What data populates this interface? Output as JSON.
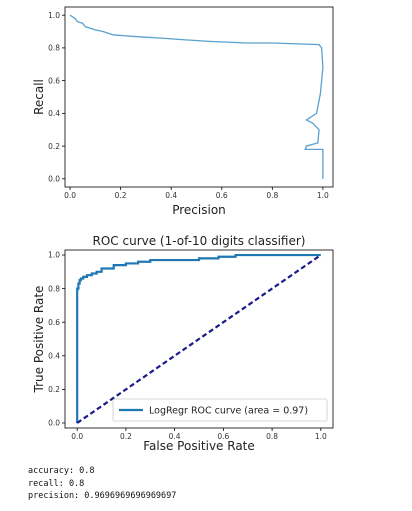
{
  "chart_data": [
    {
      "type": "line",
      "title": "",
      "xlabel": "Precision",
      "ylabel": "Recall",
      "xlim": [
        -0.02,
        1.04
      ],
      "ylim": [
        -0.05,
        1.05
      ],
      "xticks": [
        "0.0",
        "0.2",
        "0.4",
        "0.6",
        "0.8",
        "1.0"
      ],
      "yticks": [
        "0.0",
        "0.2",
        "0.4",
        "0.6",
        "0.8",
        "1.0"
      ],
      "color": "#5aa0d0",
      "series": [
        {
          "x": [
            0.0,
            0.02,
            0.03,
            0.05,
            0.06,
            0.08,
            0.1,
            0.13,
            0.17,
            0.25,
            0.36,
            0.45,
            0.55,
            0.7,
            0.8,
            0.985,
            0.995,
            1.0,
            0.99,
            0.975,
            0.935,
            0.96,
            0.985,
            0.98,
            0.935,
            0.93,
            1.0,
            1.0
          ],
          "y": [
            1.0,
            0.98,
            0.96,
            0.95,
            0.93,
            0.92,
            0.91,
            0.9,
            0.88,
            0.87,
            0.86,
            0.85,
            0.84,
            0.83,
            0.83,
            0.82,
            0.8,
            0.68,
            0.52,
            0.4,
            0.36,
            0.34,
            0.3,
            0.22,
            0.2,
            0.18,
            0.18,
            0.0
          ]
        }
      ]
    },
    {
      "type": "line",
      "title": "ROC curve (1-of-10 digits classifier)",
      "xlabel": "False Positive Rate",
      "ylabel": "True Positive Rate",
      "xlim": [
        -0.05,
        1.05
      ],
      "ylim": [
        -0.03,
        1.03
      ],
      "xticks": [
        "0.0",
        "0.2",
        "0.4",
        "0.6",
        "0.8",
        "1.0"
      ],
      "yticks": [
        "0.0",
        "0.2",
        "0.4",
        "0.6",
        "0.8",
        "1.0"
      ],
      "legend": "lower right",
      "series": [
        {
          "name": "LogRegr ROC curve (area = 0.97)",
          "color": "#1f77b4",
          "x": [
            0.0,
            0.0,
            0.005,
            0.005,
            0.01,
            0.01,
            0.015,
            0.015,
            0.025,
            0.025,
            0.04,
            0.04,
            0.06,
            0.06,
            0.08,
            0.08,
            0.1,
            0.1,
            0.15,
            0.15,
            0.2,
            0.2,
            0.25,
            0.25,
            0.3,
            0.3,
            0.5,
            0.5,
            0.58,
            0.58,
            0.65,
            0.65,
            1.0
          ],
          "y": [
            0.0,
            0.8,
            0.8,
            0.83,
            0.83,
            0.85,
            0.85,
            0.86,
            0.86,
            0.87,
            0.87,
            0.88,
            0.88,
            0.89,
            0.89,
            0.9,
            0.9,
            0.92,
            0.92,
            0.94,
            0.94,
            0.95,
            0.95,
            0.96,
            0.96,
            0.97,
            0.97,
            0.98,
            0.98,
            0.99,
            0.99,
            1.0,
            1.0
          ]
        },
        {
          "name": "",
          "color": "#1a1a8c",
          "dashed": true,
          "x": [
            0.0,
            1.0
          ],
          "y": [
            0.0,
            1.0
          ]
        }
      ]
    }
  ],
  "output": [
    "accuracy: 0.8",
    "recall: 0.8",
    "precision: 0.9696969696969697"
  ]
}
